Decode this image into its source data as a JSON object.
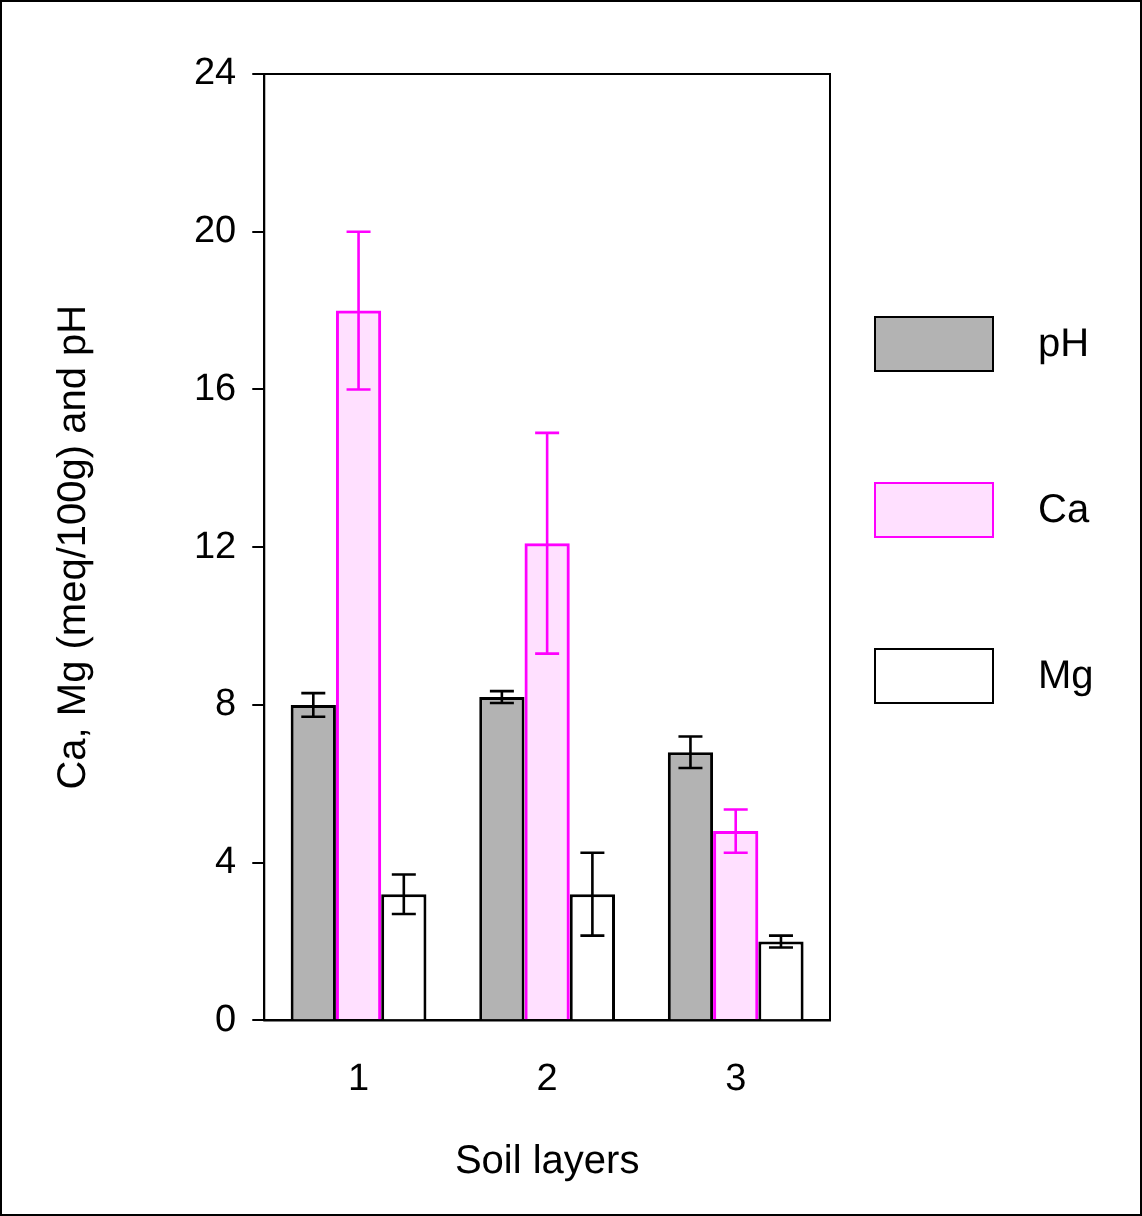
{
  "chart_data": {
    "type": "bar",
    "xlabel": "Soil layers",
    "ylabel": "Ca, Mg (meq/100g) and pH",
    "categories": [
      "1",
      "2",
      "3"
    ],
    "ylim": [
      0,
      24
    ],
    "yticks": [
      0,
      4,
      8,
      12,
      16,
      20,
      24
    ],
    "legend": "right",
    "series": [
      {
        "name": "pH",
        "color": "#b3b3b3",
        "values": [
          8.0,
          8.2,
          6.8
        ],
        "errors": [
          0.3,
          0.15,
          0.4
        ]
      },
      {
        "name": "Ca",
        "color": "#ff00ff",
        "values": [
          18.0,
          12.1,
          4.8
        ],
        "errors": [
          2,
          2.8,
          0.55
        ]
      },
      {
        "name": "Mg",
        "color": "#ffffff",
        "values": [
          3.2,
          3.2,
          2.0
        ],
        "errors": [
          0.5,
          1.05,
          0.15
        ]
      }
    ]
  }
}
